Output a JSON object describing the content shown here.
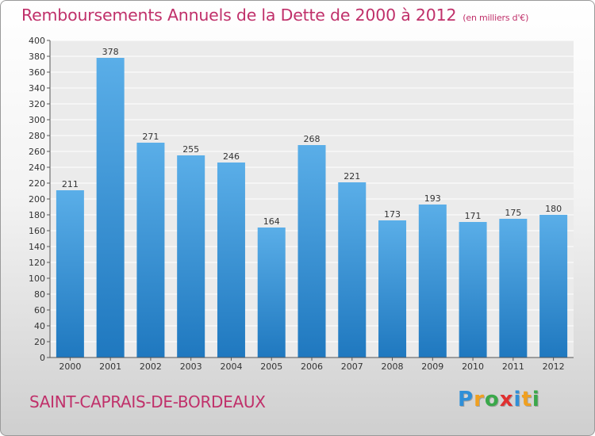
{
  "title": "Remboursements Annuels de la Dette de 2000 à 2012",
  "subtitle": "(en milliers d'€)",
  "commune": "SAINT-CAPRAIS-DE-BORDEAUX",
  "brand": {
    "letters": [
      "P",
      "r",
      "o",
      "x",
      "i",
      "t",
      "i"
    ],
    "colors": [
      "#2f8fd8",
      "#f0a020",
      "#3aa84a",
      "#e03030",
      "#2f8fd8",
      "#f0a020",
      "#3aa84a"
    ]
  },
  "colors": {
    "bar_top": "#5aaee8",
    "bar_bottom": "#1f78bf",
    "title": "#c0306a"
  },
  "chart_data": {
    "type": "bar",
    "categories": [
      "2000",
      "2001",
      "2002",
      "2003",
      "2004",
      "2005",
      "2006",
      "2007",
      "2008",
      "2009",
      "2010",
      "2011",
      "2012"
    ],
    "values": [
      211,
      378,
      271,
      255,
      246,
      164,
      268,
      221,
      173,
      193,
      171,
      175,
      180
    ],
    "ylim": [
      0,
      400
    ],
    "ytick_step": 20,
    "grid": true
  }
}
